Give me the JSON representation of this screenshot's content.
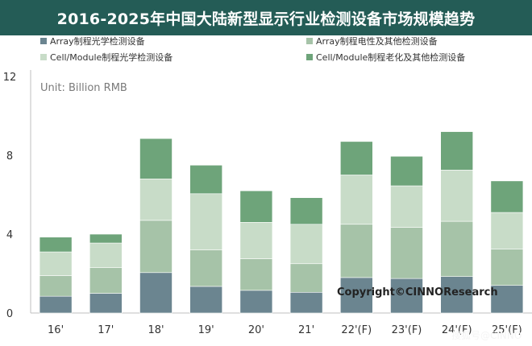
{
  "title": "2016-2025年中国大陆新型显示行业检测设备市场规模趋势",
  "colors": {
    "title_bg": "#245c56",
    "series": [
      "#6b8590",
      "#a6c3a8",
      "#c8dcc8",
      "#6ea47a"
    ]
  },
  "chart_data": {
    "type": "bar",
    "stacked": true,
    "unit_label": "Unit: Billion RMB",
    "categories": [
      "16'",
      "17'",
      "18'",
      "19'",
      "20'",
      "21'",
      "22'(F)",
      "23'(F)",
      "24'(F)",
      "25'(F)"
    ],
    "series": [
      {
        "name": "Array制程光学检测设备",
        "values": [
          0.85,
          1.0,
          2.05,
          1.35,
          1.15,
          1.05,
          1.8,
          1.75,
          1.85,
          1.4
        ]
      },
      {
        "name": "Array制程电性及其他检测设备",
        "values": [
          1.05,
          1.3,
          2.65,
          1.85,
          1.6,
          1.45,
          2.7,
          2.6,
          2.8,
          1.85
        ]
      },
      {
        "name": "Cell/Module制程光学检测设备",
        "values": [
          1.2,
          1.25,
          2.1,
          2.85,
          1.85,
          2.0,
          2.5,
          2.1,
          2.6,
          1.85
        ]
      },
      {
        "name": "Cell/Module制程老化及其他检测设备",
        "values": [
          0.75,
          0.45,
          2.05,
          1.45,
          1.6,
          1.35,
          1.7,
          1.5,
          1.95,
          1.6
        ]
      }
    ],
    "ylim": [
      0,
      12
    ],
    "yticks": [
      0,
      4,
      8,
      12
    ],
    "grid": false,
    "legend_position": "top"
  },
  "copyright": "Copyright©CINNOResearch",
  "watermark": "搜狐号@CINNO"
}
